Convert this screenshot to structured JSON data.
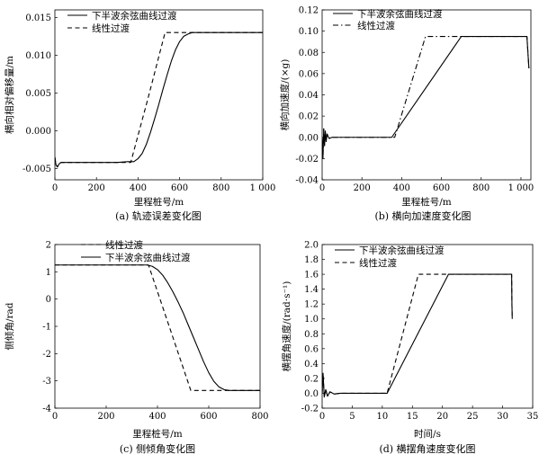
{
  "chart_data": [
    {
      "type": "line",
      "caption": "(a) 轨迹误差变化图",
      "xlabel": "里程桩号/m",
      "ylabel": "横向相对偏移量/m",
      "xlim": [
        0,
        1000
      ],
      "ylim": [
        -0.0065,
        0.016
      ],
      "xticks": [
        0,
        200,
        400,
        600,
        800,
        1000
      ],
      "xtick_labels": [
        "0",
        "200",
        "400",
        "600",
        "800",
        "1 000"
      ],
      "yticks": [
        -0.005,
        0.0,
        0.005,
        0.01,
        0.015
      ],
      "ytick_labels": [
        "-0.005",
        "0.000",
        "0.005",
        "0.010",
        "0.015"
      ],
      "legend_position": "top-left",
      "series": [
        {
          "name": "下半波余弦曲线过渡",
          "style": "solid",
          "x": [
            0,
            5,
            12,
            20,
            30,
            60,
            100,
            200,
            300,
            350,
            380,
            400,
            420,
            440,
            460,
            480,
            500,
            520,
            540,
            560,
            580,
            600,
            620,
            640,
            660,
            680,
            700,
            750,
            800,
            900,
            1000
          ],
          "y": [
            -0.0035,
            -0.0045,
            -0.0048,
            -0.0044,
            -0.0042,
            -0.0042,
            -0.0042,
            -0.0042,
            -0.0042,
            -0.0041,
            -0.0041,
            -0.0037,
            -0.003,
            -0.0018,
            -0.0002,
            0.0016,
            0.0035,
            0.0055,
            0.0074,
            0.0092,
            0.0107,
            0.0118,
            0.0125,
            0.0128,
            0.013,
            0.013,
            0.013,
            0.013,
            0.013,
            0.013,
            0.013
          ]
        },
        {
          "name": "线性过渡",
          "style": "dashed",
          "x": [
            0,
            5,
            12,
            20,
            30,
            100,
            200,
            300,
            365,
            450,
            530,
            560,
            650,
            700,
            1000
          ],
          "y": [
            -0.0035,
            -0.0045,
            -0.0048,
            -0.0044,
            -0.0042,
            -0.0042,
            -0.0042,
            -0.0042,
            -0.0042,
            0.0045,
            0.013,
            0.013,
            0.013,
            0.013,
            0.013
          ]
        }
      ]
    },
    {
      "type": "line",
      "caption": "(b) 横向加速度变化图",
      "xlabel": "里程桩号/m",
      "ylabel": "横向加速度/(×g)",
      "xlim": [
        0,
        1050
      ],
      "ylim": [
        -0.04,
        0.12
      ],
      "xticks": [
        0,
        200,
        400,
        600,
        800,
        1000
      ],
      "xtick_labels": [
        "0",
        "200",
        "400",
        "600",
        "800",
        "1 000"
      ],
      "yticks": [
        -0.04,
        -0.02,
        0.0,
        0.02,
        0.04,
        0.06,
        0.08,
        0.1,
        0.12
      ],
      "ytick_labels": [
        "-0.04",
        "-0.02",
        "0.00",
        "0.02",
        "0.04",
        "0.06",
        "0.08",
        "0.10",
        "0.12"
      ],
      "legend_position": "top-left",
      "series": [
        {
          "name": "下半波余弦曲线过渡",
          "style": "solid",
          "x": [
            0,
            4,
            8,
            12,
            16,
            20,
            25,
            35,
            50,
            350,
            700,
            1030,
            1040
          ],
          "y": [
            0.0,
            -0.02,
            0.008,
            -0.008,
            0.006,
            -0.004,
            0.003,
            -0.001,
            0.0,
            0.0,
            0.095,
            0.095,
            0.065
          ]
        },
        {
          "name": "线性过渡",
          "style": "dashdot",
          "x": [
            0,
            4,
            8,
            12,
            16,
            20,
            25,
            35,
            50,
            365,
            520,
            1030,
            1040
          ],
          "y": [
            0.0,
            -0.02,
            0.008,
            -0.008,
            0.006,
            -0.004,
            0.003,
            -0.001,
            0.0,
            0.0,
            0.095,
            0.095,
            0.065
          ]
        }
      ]
    },
    {
      "type": "line",
      "caption": "(c) 侧倾角变化图",
      "xlabel": "里程桩号/m",
      "ylabel": "侧倾角/rad",
      "xlim": [
        0,
        800
      ],
      "ylim": [
        -4,
        2
      ],
      "xticks": [
        0,
        200,
        400,
        600,
        800
      ],
      "xtick_labels": [
        "0",
        "200",
        "400",
        "600",
        "800"
      ],
      "yticks": [
        -4,
        -3,
        -2,
        -1,
        0,
        1,
        2
      ],
      "ytick_labels": [
        "-4",
        "-3",
        "-2",
        "-1",
        "0",
        "1",
        "2"
      ],
      "legend_position": "top-left",
      "series": [
        {
          "name": "线性过渡",
          "style": "dashed",
          "x": [
            0,
            365,
            530,
            800
          ],
          "y": [
            1.25,
            1.25,
            -3.35,
            -3.35
          ]
        },
        {
          "name": "下半波余弦曲线过渡",
          "style": "solid",
          "x": [
            0,
            360,
            380,
            400,
            420,
            440,
            460,
            480,
            500,
            520,
            540,
            560,
            580,
            600,
            620,
            640,
            660,
            680,
            700,
            800
          ],
          "y": [
            1.25,
            1.25,
            1.2,
            1.08,
            0.88,
            0.6,
            0.27,
            -0.1,
            -0.5,
            -0.95,
            -1.4,
            -1.85,
            -2.3,
            -2.7,
            -3.02,
            -3.22,
            -3.32,
            -3.35,
            -3.35,
            -3.35
          ]
        }
      ]
    },
    {
      "type": "line",
      "caption": "(d) 横摆角速度变化图",
      "xlabel": "时间/s",
      "ylabel": "横摆角速度/(rad·s⁻¹)",
      "xlim": [
        0,
        35
      ],
      "ylim": [
        -0.2,
        2.0
      ],
      "xticks": [
        0,
        5,
        10,
        15,
        20,
        25,
        30,
        35
      ],
      "xtick_labels": [
        "0",
        "5",
        "10",
        "15",
        "20",
        "25",
        "30",
        "35"
      ],
      "yticks": [
        -0.2,
        0.0,
        0.2,
        0.4,
        0.6,
        0.8,
        1.0,
        1.2,
        1.4,
        1.6,
        1.8,
        2.0
      ],
      "ytick_labels": [
        "-0.2",
        "0.0",
        "0.2",
        "0.4",
        "0.6",
        "0.8",
        "1.0",
        "1.2",
        "1.4",
        "1.6",
        "1.8",
        "2.0"
      ],
      "legend_position": "top-left",
      "series": [
        {
          "name": "下半波余弦曲线过渡",
          "style": "solid",
          "x": [
            0,
            0.15,
            0.35,
            0.6,
            0.9,
            1.3,
            2,
            3,
            10.8,
            21,
            31.5,
            31.55,
            31.6
          ],
          "y": [
            0.0,
            0.27,
            -0.05,
            0.05,
            -0.04,
            0.02,
            -0.01,
            0.0,
            0.0,
            1.6,
            1.6,
            1.2,
            1.0
          ]
        },
        {
          "name": "线性过渡",
          "style": "dashed",
          "x": [
            0,
            0.15,
            0.35,
            0.6,
            0.9,
            1.3,
            2,
            3,
            10.8,
            16,
            31.5,
            31.55,
            31.6
          ],
          "y": [
            0.0,
            0.27,
            -0.05,
            0.05,
            -0.04,
            0.02,
            -0.01,
            0.0,
            0.0,
            1.6,
            1.6,
            1.2,
            1.0
          ]
        }
      ]
    }
  ]
}
